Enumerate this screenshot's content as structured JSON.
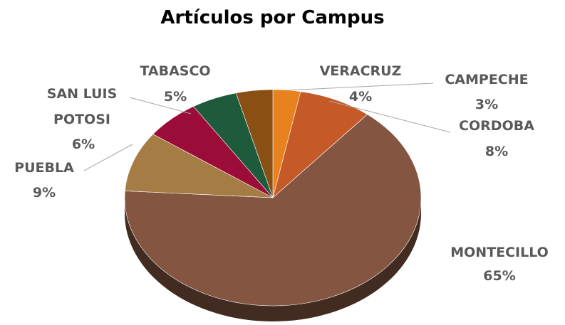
{
  "chart_data": {
    "type": "pie",
    "title": "Artículos por Campus",
    "categories": [
      "CAMPECHE",
      "CORDOBA",
      "MONTECILLO",
      "PUEBLA",
      "SAN LUIS POTOSI",
      "TABASCO",
      "VERACRUZ"
    ],
    "values": [
      3,
      8,
      65,
      9,
      6,
      5,
      4
    ],
    "value_labels": [
      "3%",
      "8%",
      "65%",
      "9%",
      "6%",
      "5%",
      "4%"
    ],
    "colors": [
      "#e8821e",
      "#c55a28",
      "#845541",
      "#a67c45",
      "#9c0c38",
      "#1e5a3c",
      "#8a4f12"
    ]
  }
}
